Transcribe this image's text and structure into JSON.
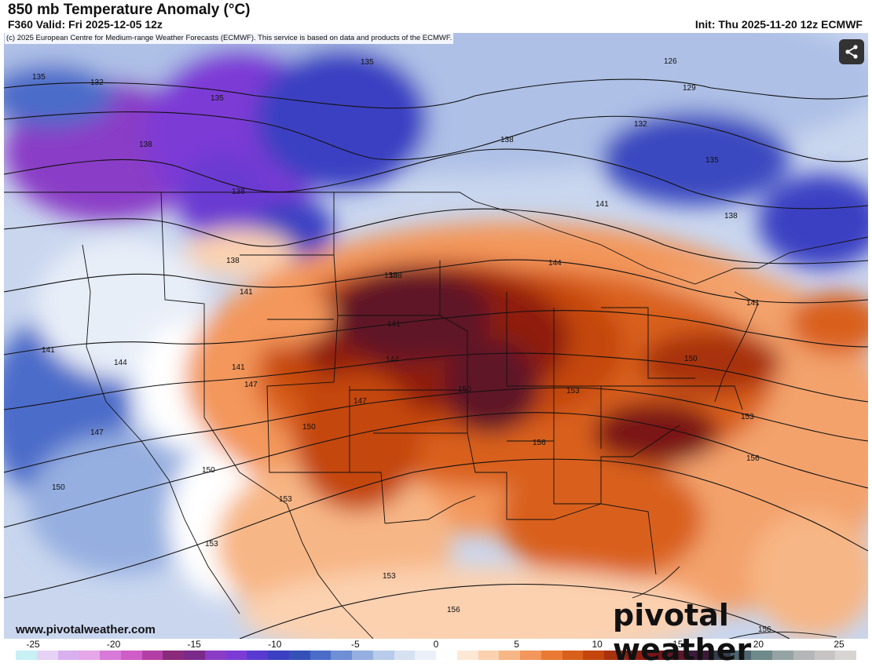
{
  "header": {
    "title": "850 mb Temperature Anomaly (°C)",
    "valid": "F360 Valid: Fri 2025-12-05 12z",
    "init": "Init: Thu 2025-11-20 12z ECMWF",
    "copyright": "(c) 2025 European Centre for Medium-range Weather Forecasts (ECMWF). This service is based on data and products of the ECMWF."
  },
  "watermark": {
    "url": "www.pivotalweather.com",
    "logo": "pivotal weather"
  },
  "share_icon": "share-icon",
  "colorbar": {
    "ticks": [
      "-25",
      "-20",
      "-15",
      "-10",
      "-5",
      "0",
      "5",
      "10",
      "15",
      "20",
      "25"
    ],
    "colors": [
      "#c8f0f5",
      "#e6d2f5",
      "#d8b0ef",
      "#e6a6e8",
      "#d77ad9",
      "#cf5dc8",
      "#b43fa6",
      "#8a2a7a",
      "#7b2a8a",
      "#8a3cc6",
      "#7d3bd6",
      "#5a3bd1",
      "#3b3fc2",
      "#3551b8",
      "#4b6cc9",
      "#6e8fd6",
      "#95afe0",
      "#b8cbea",
      "#d6e1f2",
      "#ebf0f8",
      "#ffffff",
      "#fde8d6",
      "#fbd1b0",
      "#f7b685",
      "#f3975c",
      "#ea7a33",
      "#d9601a",
      "#c4460d",
      "#a8320e",
      "#8f1e10",
      "#7a1419",
      "#5e1628",
      "#3e1a3a",
      "#353c4b",
      "#4d6670",
      "#6e8a8a",
      "#96a3a3",
      "#b4b7b7",
      "#c9c4c4",
      "#d9d4d4"
    ],
    "range": [
      -25,
      25
    ]
  },
  "contour_labels": [
    "135",
    "132",
    "135",
    "135",
    "126",
    "129",
    "132",
    "135",
    "138",
    "138",
    "138",
    "141",
    "138",
    "138",
    "138",
    "141",
    "144",
    "141",
    "138",
    "141",
    "141",
    "144",
    "144",
    "141",
    "147",
    "147",
    "147",
    "150",
    "153",
    "150",
    "150",
    "150",
    "150",
    "153",
    "153",
    "156",
    "156",
    "153",
    "153",
    "156",
    "156"
  ]
}
